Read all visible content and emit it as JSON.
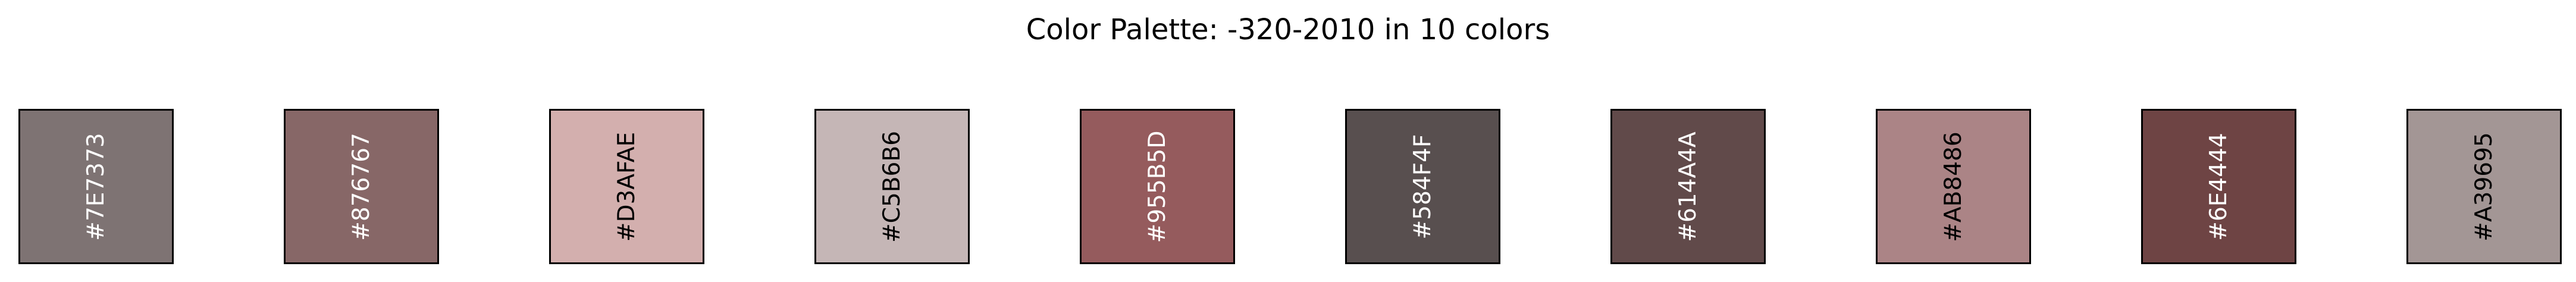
{
  "title": "Color Palette: -320-2010 in 10 colors",
  "swatches": [
    {
      "hex": "#7E7373",
      "label": "#7E7373",
      "text_color": "#ffffff"
    },
    {
      "hex": "#876767",
      "label": "#876767",
      "text_color": "#ffffff"
    },
    {
      "hex": "#D3AFAE",
      "label": "#D3AFAE",
      "text_color": "#000000"
    },
    {
      "hex": "#C5B6B6",
      "label": "#C5B6B6",
      "text_color": "#000000"
    },
    {
      "hex": "#955B5D",
      "label": "#955B5D",
      "text_color": "#ffffff"
    },
    {
      "hex": "#584F4F",
      "label": "#584F4F",
      "text_color": "#ffffff"
    },
    {
      "hex": "#614A4A",
      "label": "#614A4A",
      "text_color": "#ffffff"
    },
    {
      "hex": "#AB8486",
      "label": "#AB8486",
      "text_color": "#000000"
    },
    {
      "hex": "#6E4444",
      "label": "#6E4444",
      "text_color": "#ffffff"
    },
    {
      "hex": "#A39695",
      "label": "#A39695",
      "text_color": "#000000"
    }
  ]
}
